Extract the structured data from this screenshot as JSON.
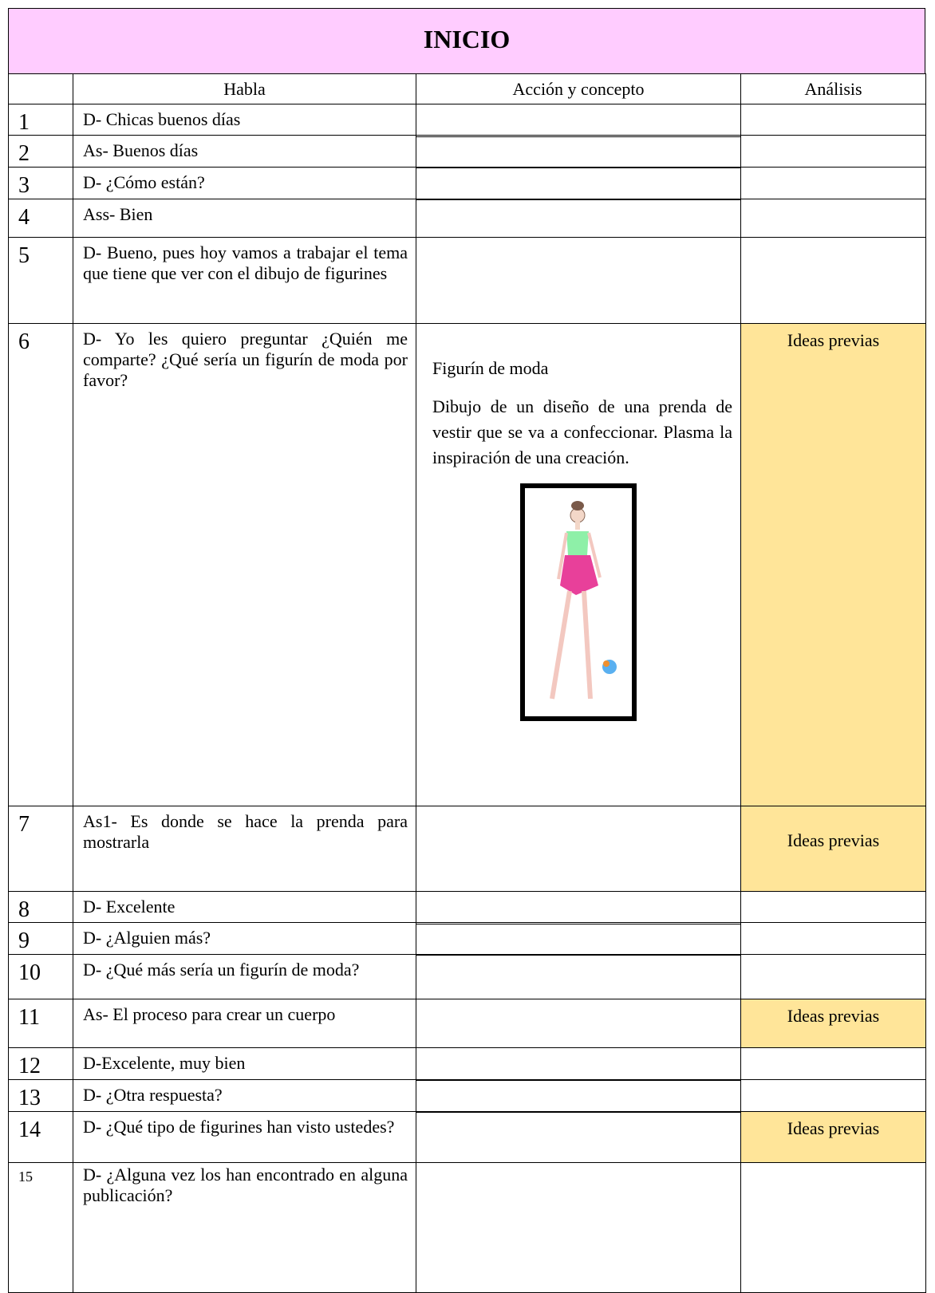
{
  "header": {
    "title": "INICIO"
  },
  "table": {
    "columns": [
      "Habla",
      "Acción y concepto",
      "Análisis"
    ],
    "rows": [
      {
        "num": "1",
        "habla": "D- Chicas buenos días"
      },
      {
        "num": "2",
        "habla": "As- Buenos días"
      },
      {
        "num": "3",
        "habla": "D- ¿Cómo están?"
      },
      {
        "num": "4",
        "habla": "Ass- Bien"
      },
      {
        "num": "5",
        "habla": "D- Bueno, pues hoy vamos a trabajar el tema que tiene que ver con el dibujo de figurines"
      },
      {
        "num": "6",
        "habla": "D- Yo les quiero preguntar ¿Quién me comparte? ¿Qué sería un figurín de moda por favor?",
        "accion": [
          "Figurín de moda",
          "Dibujo de un diseño de una prenda de vestir que se va a confeccionar. Plasma la inspiración de una creación."
        ],
        "analisis": "Ideas previas"
      },
      {
        "num": "7",
        "habla": "As1- Es donde se hace la prenda para mostrarla",
        "analisis": "Ideas previas"
      },
      {
        "num": "8",
        "habla": "D- Excelente"
      },
      {
        "num": "9",
        "habla": "D- ¿Alguien más?"
      },
      {
        "num": "10",
        "habla": "D- ¿Qué más sería un figurín de moda?"
      },
      {
        "num": "11",
        "habla": "As- El proceso para crear un cuerpo",
        "analisis": "Ideas previas"
      },
      {
        "num": "12",
        "habla": "D-Excelente, muy bien"
      },
      {
        "num": "13",
        "habla": "D- ¿Otra respuesta?"
      },
      {
        "num": "14",
        "habla": "D- ¿Qué tipo de figurines han visto ustedes?",
        "analisis": "Ideas previas"
      },
      {
        "num": "15",
        "habla": "D- ¿Alguna vez los han encontrado en alguna publicación?"
      }
    ]
  }
}
